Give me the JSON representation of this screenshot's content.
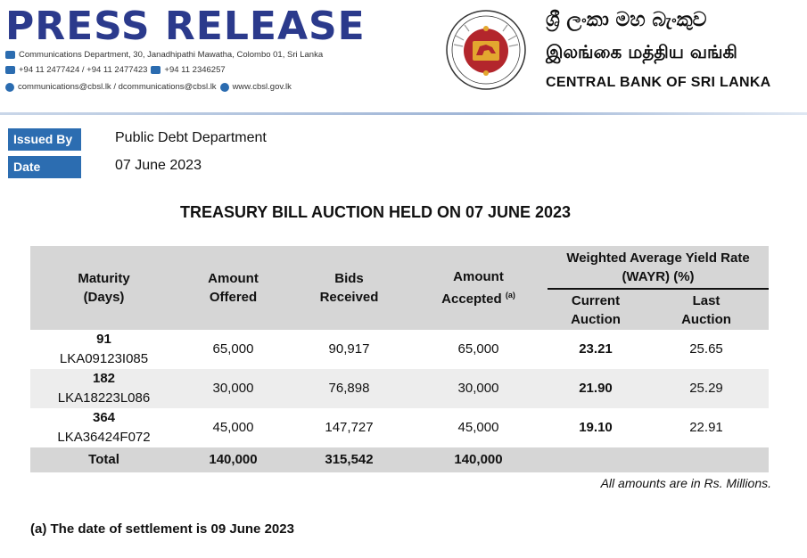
{
  "header": {
    "title": "PRESS RELEASE",
    "address": "Communications Department, 30, Janadhipathi Mawatha, Colombo 01, Sri Lanka",
    "phones": "+94 11 2477424 / +94 11 2477423",
    "fax": "+94 11  2346257",
    "emails": "communications@cbsl.lk / dcommunications@cbsl.lk",
    "website": "www.cbsl.gov.lk",
    "org_sinhala": "ශ්‍රී ලංකා මහ බැංකුව",
    "org_tamil": "இலங்கை மத்திய வங்கி",
    "org_english": "CENTRAL BANK OF SRI LANKA",
    "colors": {
      "title": "#2b3a8c",
      "label_bg": "#2c6db1",
      "seal_red": "#b3262c",
      "seal_gold": "#e3a72f"
    }
  },
  "meta": {
    "issued_by_label": "Issued By",
    "issued_by_value": "Public Debt Department",
    "date_label": "Date",
    "date_value": "07 June 2023"
  },
  "auction_title": "TREASURY BILL AUCTION HELD ON 07 JUNE 2023",
  "table": {
    "headers": {
      "maturity": [
        "Maturity",
        "(Days)"
      ],
      "offered": [
        "Amount",
        "Offered"
      ],
      "bids": [
        "Bids",
        "Received"
      ],
      "accepted": [
        "Amount",
        "Accepted"
      ],
      "accepted_note": "(a)",
      "wayr": [
        "Weighted Average Yield Rate",
        "(WAYR) (%)"
      ],
      "current": [
        "Current",
        "Auction"
      ],
      "last": [
        "Last",
        "Auction"
      ]
    },
    "rows": [
      {
        "days": "91",
        "isin": "LKA09123I085",
        "offered": "65,000",
        "bids": "90,917",
        "accepted": "65,000",
        "current": "23.21",
        "last": "25.65"
      },
      {
        "days": "182",
        "isin": "LKA18223L086",
        "offered": "30,000",
        "bids": "76,898",
        "accepted": "30,000",
        "current": "21.90",
        "last": "25.29"
      },
      {
        "days": "364",
        "isin": "LKA36424F072",
        "offered": "45,000",
        "bids": "147,727",
        "accepted": "45,000",
        "current": "19.10",
        "last": "22.91"
      }
    ],
    "total": {
      "label": "Total",
      "offered": "140,000",
      "bids": "315,542",
      "accepted": "140,000"
    }
  },
  "units_note": "All amounts are in Rs. Millions.",
  "footnote": "(a) The date of settlement is 09 June 2023"
}
